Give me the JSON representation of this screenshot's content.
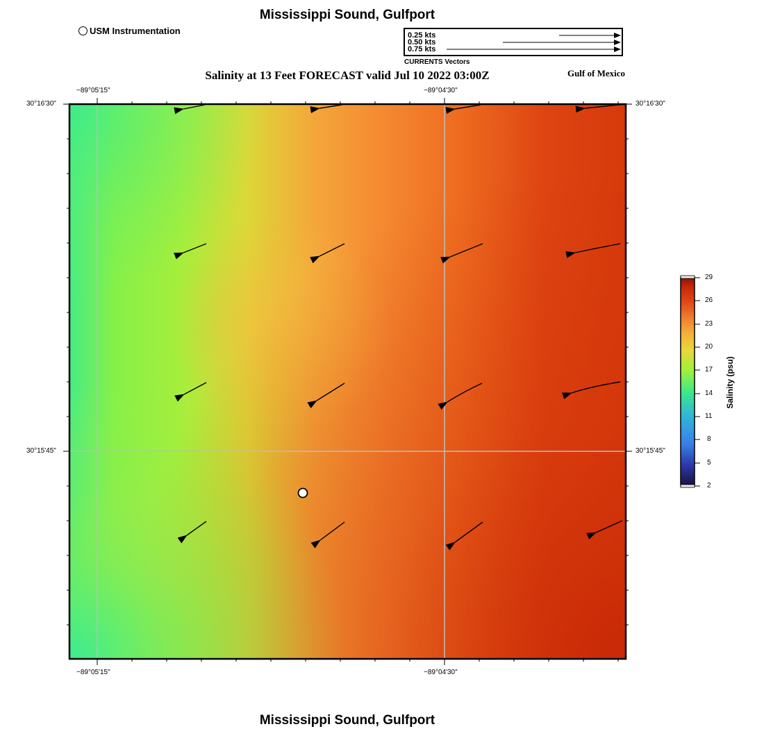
{
  "title_top": "Mississippi Sound, Gulfport",
  "title_bottom": "Mississippi Sound, Gulfport",
  "subtitle": "Salinity at 13 Feet FORECAST valid Jul 10 2022 03:00Z",
  "region_label": "Gulf of Mexico",
  "station_legend": "USM Instrumentation",
  "vector_legend": {
    "labels": [
      "0.25 kts",
      "0.50 kts",
      "0.75 kts"
    ],
    "speeds": [
      0.25,
      0.5,
      0.75
    ],
    "title": "CURRENTS Vectors"
  },
  "axes": {
    "lon_ticks": [
      "−89°05'15\"",
      "−89°04'30\""
    ],
    "lat_ticks": [
      "30°16'30\"",
      "30°15'45\""
    ]
  },
  "colorbar": {
    "title": "Salinity (psu)",
    "ticks": [
      "29",
      "26",
      "23",
      "20",
      "17",
      "14",
      "11",
      "8",
      "5",
      "2"
    ],
    "min": 2,
    "max": 29,
    "colors": [
      "#1a1040",
      "#2a3aa8",
      "#3a7ee8",
      "#2fb5d8",
      "#3de88a",
      "#9ef03c",
      "#e8d838",
      "#f5b038",
      "#f08030",
      "#e04818",
      "#c82808",
      "#8a1206"
    ]
  },
  "field_colors": {
    "west": "#46ec86",
    "green": "#98ee3e",
    "yellow": "#dcd838",
    "orange": "#f4a63a",
    "red_orange": "#ee6c20",
    "red": "#de4512",
    "deep_red": "#cc2e06"
  },
  "current_vectors": [
    {
      "id": "v1",
      "row": 0,
      "col": 0
    },
    {
      "id": "v2",
      "row": 0,
      "col": 1
    },
    {
      "id": "v3",
      "row": 0,
      "col": 2
    },
    {
      "id": "v4",
      "row": 0,
      "col": 3
    },
    {
      "id": "v5",
      "row": 1,
      "col": 0
    },
    {
      "id": "v6",
      "row": 1,
      "col": 1
    },
    {
      "id": "v7",
      "row": 1,
      "col": 2
    },
    {
      "id": "v8",
      "row": 1,
      "col": 3
    },
    {
      "id": "v9",
      "row": 2,
      "col": 0
    },
    {
      "id": "v10",
      "row": 2,
      "col": 1
    },
    {
      "id": "v11",
      "row": 2,
      "col": 2
    },
    {
      "id": "v12",
      "row": 2,
      "col": 3
    },
    {
      "id": "v13",
      "row": 3,
      "col": 0
    },
    {
      "id": "v14",
      "row": 3,
      "col": 1
    },
    {
      "id": "v15",
      "row": 3,
      "col": 2
    },
    {
      "id": "v16",
      "row": 3,
      "col": 3
    }
  ]
}
